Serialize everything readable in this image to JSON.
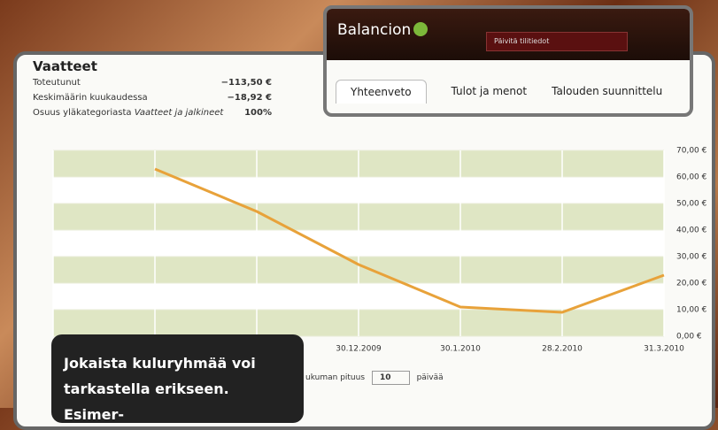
{
  "app": {
    "logo": "Balancion",
    "refresh_select": "Päivitä tilitiedot",
    "tabs": [
      "Yhteenveto",
      "Tulot ja menot",
      "Talouden suunnittelu"
    ]
  },
  "summary": {
    "title": "Vaatteet",
    "rows": [
      {
        "label": "Toteutunut",
        "value": "−113,50 €"
      },
      {
        "label": "Keskimäärin kuukaudessa",
        "value": "−18,92 €"
      },
      {
        "label": "Osuus yläkategoriasta",
        "label_em": "Vaatteet ja jalkineet",
        "value": "100%"
      }
    ]
  },
  "controls": {
    "period_label": "ukuman pituus",
    "period_value": "10",
    "unit": "päivää"
  },
  "caption": {
    "lines": [
      "Jokaista kuluryhmää voi",
      "tarkastella erikseen. Esimer-"
    ]
  },
  "chart_data": {
    "type": "line",
    "categories": [
      null,
      null,
      null,
      "30.12.2009",
      "30.1.2010",
      "28.2.2010",
      "31.3.2010"
    ],
    "series": [
      {
        "color": "#e8a23a",
        "values": [
          null,
          63,
          47,
          27,
          11,
          9,
          23
        ]
      }
    ],
    "ylim": [
      0,
      70
    ],
    "yticks": [
      {
        "value": 0,
        "label": "0,00 €"
      },
      {
        "value": 10,
        "label": "10,00 €"
      },
      {
        "value": 20,
        "label": "20,00 €"
      },
      {
        "value": 30,
        "label": "30,00 €"
      },
      {
        "value": 40,
        "label": "40,00 €"
      },
      {
        "value": 50,
        "label": "50,00 €"
      },
      {
        "value": 60,
        "label": "60,00 €"
      },
      {
        "value": 70,
        "label": "70,00 €"
      }
    ],
    "grid": true
  }
}
